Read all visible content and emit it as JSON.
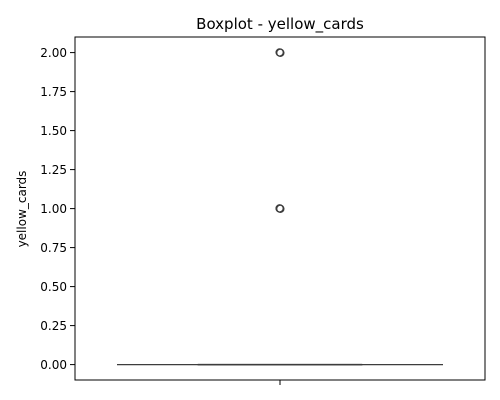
{
  "chart_data": {
    "type": "box",
    "title": "Boxplot - yellow_cards",
    "xlabel": "",
    "ylabel": "yellow_cards",
    "ylim": [
      -0.1,
      2.1
    ],
    "yticks": [
      0.0,
      0.25,
      0.5,
      0.75,
      1.0,
      1.25,
      1.5,
      1.75,
      2.0
    ],
    "ytick_labels": [
      "0.00",
      "0.25",
      "0.50",
      "0.75",
      "1.00",
      "1.25",
      "1.50",
      "1.75",
      "2.00"
    ],
    "grid": false,
    "legend": "none",
    "box": {
      "min": 0.0,
      "q1": 0.0,
      "median": 0.0,
      "q3": 0.0,
      "max": 0.0,
      "outliers": [
        1.0,
        1.0,
        1.0,
        1.0,
        2.0,
        2.0,
        2.0
      ]
    },
    "colors": {
      "box_line": "#3d3d3d",
      "outlier_edge": "#3d3d3d",
      "axes": "#000000"
    }
  }
}
